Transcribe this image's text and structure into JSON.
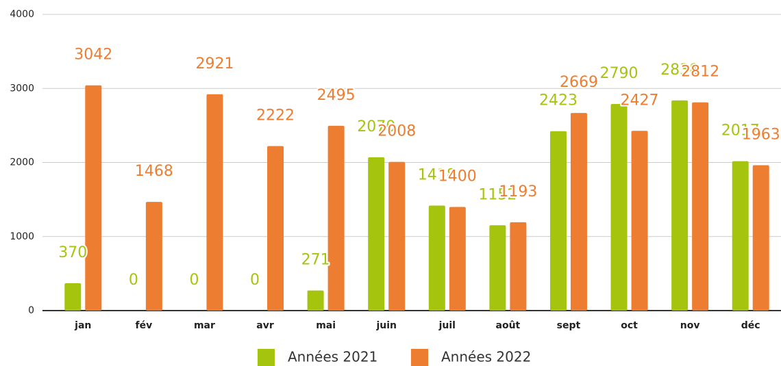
{
  "chart_data": {
    "type": "bar",
    "categories": [
      "jan",
      "fév",
      "mar",
      "avr",
      "mai",
      "juin",
      "juil",
      "août",
      "sept",
      "oct",
      "nov",
      "déc"
    ],
    "series": [
      {
        "name": "Années 2021",
        "color": "#a5c40e",
        "values": [
          370,
          0,
          0,
          0,
          271,
          2070,
          1418,
          1152,
          2423,
          2790,
          2838,
          2017
        ]
      },
      {
        "name": "Années 2022",
        "color": "#ed7d31",
        "values": [
          3042,
          1468,
          2921,
          2222,
          2495,
          2008,
          1400,
          1193,
          2669,
          2427,
          2812,
          1963
        ]
      }
    ],
    "ylim": [
      0,
      4000
    ],
    "yticks": [
      0,
      1000,
      2000,
      3000,
      4000
    ],
    "grid": true,
    "legend": "bottom"
  }
}
